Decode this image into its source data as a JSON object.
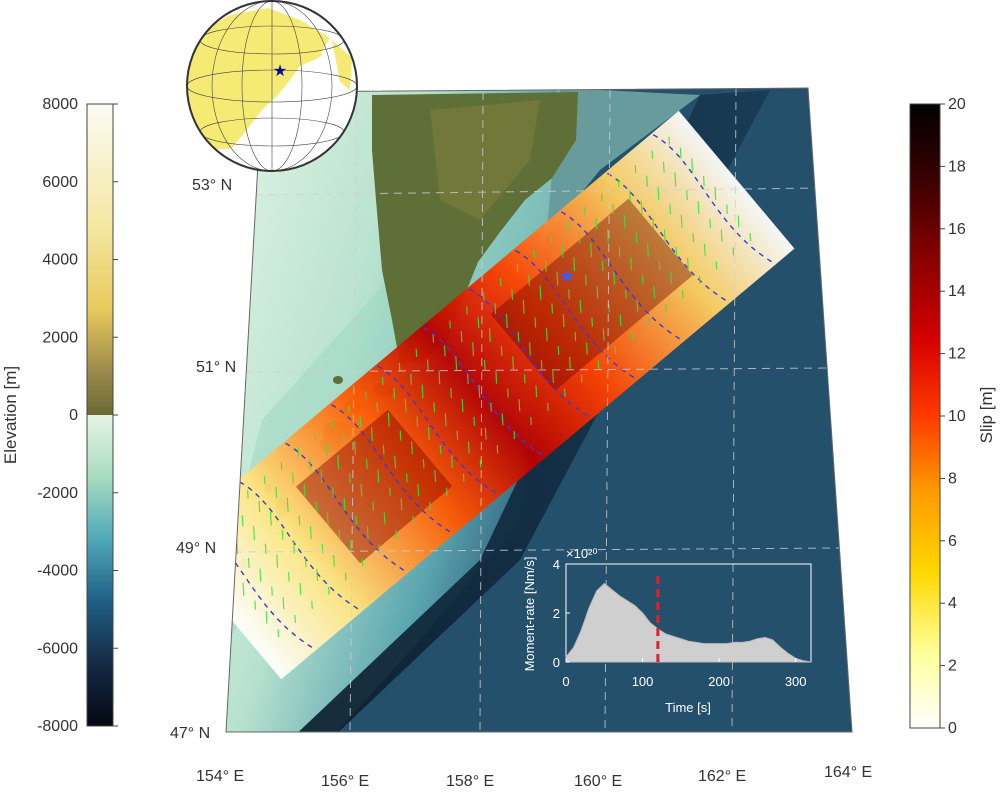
{
  "elevation_colorbar": {
    "title": "Elevation [m]",
    "ticks": [
      "8000",
      "6000",
      "4000",
      "2000",
      "0",
      "-2000",
      "-4000",
      "-6000",
      "-8000"
    ],
    "colors": [
      "#fbfbf3",
      "#f4e7a0",
      "#e8c95c",
      "#9b8a4b",
      "#6a6a34",
      "#cfeccd",
      "#7fc7b0",
      "#2c8ab3",
      "#173b5e",
      "#0a0f1c"
    ]
  },
  "slip_colorbar": {
    "title": "Slip [m]",
    "ticks": [
      "20",
      "18",
      "16",
      "14",
      "12",
      "10",
      "8",
      "6",
      "4",
      "2",
      "0"
    ],
    "colors": [
      "#ffffff",
      "#ffff9a",
      "#ffd800",
      "#ff9a00",
      "#ff3a00",
      "#d80000",
      "#8a0000",
      "#3a0000",
      "#000000"
    ]
  },
  "map": {
    "latitude_labels": [
      "53° N",
      "51° N",
      "49° N",
      "47° N"
    ],
    "longitude_labels": [
      "154° E",
      "156° E",
      "158° E",
      "160° E",
      "162° E",
      "164° E"
    ],
    "colors": {
      "land": "#5e6f38",
      "shallow_sea": "#d6efd9",
      "deep_sea": "#2d4f68",
      "trench": "#0c1e2e",
      "vector": "#39e23c",
      "contour": "#3a3ad8"
    }
  },
  "globe": {
    "land_color": "#f4ea74",
    "ocean_color": "#ffffff",
    "star_color": "#0a0a9a"
  },
  "epicenter": {
    "icon": "star-icon",
    "color": "#3a5cff"
  },
  "inset": {
    "ylabel": "Moment-rate [Nm/s]",
    "xlabel": "Time [s]",
    "exponent": "×10²⁰",
    "yticks": [
      "4",
      "2",
      "0"
    ],
    "xticks": [
      "0",
      "100",
      "200",
      "300"
    ],
    "marker_color": "#e0202a",
    "fill_color": "#cfcfcf"
  },
  "chart_data": {
    "type": "area",
    "xlabel": "Time [s]",
    "ylabel": "Moment-rate [Nm/s]",
    "xlim": [
      0,
      320
    ],
    "ylim": [
      0,
      4
    ],
    "x": [
      0,
      10,
      20,
      30,
      40,
      50,
      60,
      70,
      80,
      90,
      100,
      110,
      120,
      130,
      140,
      150,
      160,
      170,
      180,
      190,
      200,
      210,
      220,
      230,
      240,
      250,
      260,
      270,
      280,
      290,
      300,
      310,
      320
    ],
    "values": [
      0.2,
      0.6,
      1.3,
      2.2,
      2.9,
      3.2,
      2.95,
      2.7,
      2.5,
      2.3,
      2.0,
      1.6,
      1.35,
      1.15,
      1.05,
      0.95,
      0.85,
      0.8,
      0.75,
      0.75,
      0.75,
      0.75,
      0.8,
      0.8,
      0.85,
      0.95,
      1.0,
      0.9,
      0.6,
      0.35,
      0.15,
      0.05,
      0.0
    ],
    "marker_time": 120
  }
}
